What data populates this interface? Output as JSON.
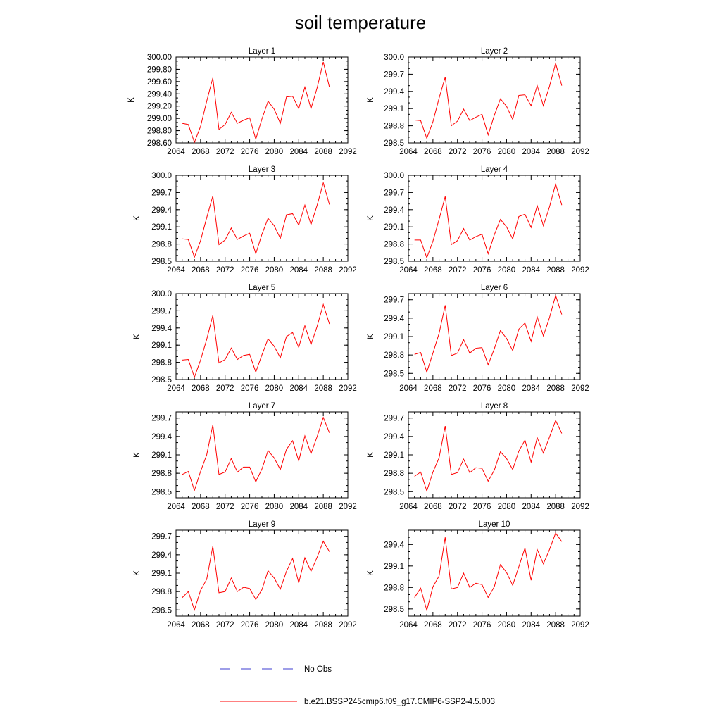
{
  "title": "soil temperature",
  "colors": {
    "model_line": "#ff0000",
    "obs_line": "#3c3cd2",
    "axis": "#000000"
  },
  "legend": [
    {
      "label": "No Obs",
      "style": "dashed",
      "color": "#3c3cd2"
    },
    {
      "label": "b.e21.BSSP245cmip6.f09_g17.CMIP6-SSP2-4.5.003",
      "style": "solid",
      "color": "#ff0000"
    }
  ],
  "chart_data": [
    {
      "type": "line",
      "title": "Layer 1",
      "xlabel": "",
      "ylabel": "K",
      "xlim": [
        2064,
        2092
      ],
      "ylim": [
        298.6,
        300.0
      ],
      "xticks": [
        2064,
        2068,
        2072,
        2076,
        2080,
        2084,
        2088,
        2092
      ],
      "yticks": [
        298.6,
        298.8,
        299.0,
        299.2,
        299.4,
        299.6,
        299.8,
        300.0
      ],
      "ytick_labels": [
        "298.60",
        "298.80",
        "299.00",
        "299.20",
        "299.40",
        "299.60",
        "299.80",
        "300.00"
      ],
      "x": [
        2065,
        2066,
        2067,
        2068,
        2069,
        2070,
        2071,
        2072,
        2073,
        2074,
        2075,
        2076,
        2077,
        2078,
        2079,
        2080,
        2081,
        2082,
        2083,
        2084,
        2085,
        2086,
        2087,
        2088,
        2089
      ],
      "series": [
        {
          "name": "b.e21.BSSP245cmip6.f09_g17.CMIP6-SSP2-4.5.003",
          "values": [
            298.92,
            298.9,
            298.61,
            298.87,
            299.28,
            299.66,
            298.82,
            298.9,
            299.1,
            298.92,
            298.97,
            299.01,
            298.66,
            298.99,
            299.28,
            299.15,
            298.92,
            299.35,
            299.36,
            299.16,
            299.51,
            299.16,
            299.5,
            299.92,
            299.51
          ]
        }
      ]
    },
    {
      "type": "line",
      "title": "Layer 2",
      "xlabel": "",
      "ylabel": "K",
      "xlim": [
        2064,
        2092
      ],
      "ylim": [
        298.5,
        300.0
      ],
      "xticks": [
        2064,
        2068,
        2072,
        2076,
        2080,
        2084,
        2088,
        2092
      ],
      "yticks": [
        298.5,
        298.8,
        299.1,
        299.4,
        299.7,
        300.0
      ],
      "ytick_labels": [
        "298.5",
        "298.8",
        "299.1",
        "299.4",
        "299.7",
        "300.0"
      ],
      "x": [
        2065,
        2066,
        2067,
        2068,
        2069,
        2070,
        2071,
        2072,
        2073,
        2074,
        2075,
        2076,
        2077,
        2078,
        2079,
        2080,
        2081,
        2082,
        2083,
        2084,
        2085,
        2086,
        2087,
        2088,
        2089
      ],
      "series": [
        {
          "name": "b.e21.BSSP245cmip6.f09_g17.CMIP6-SSP2-4.5.003",
          "values": [
            298.9,
            298.89,
            298.58,
            298.87,
            299.28,
            299.65,
            298.8,
            298.88,
            299.09,
            298.89,
            298.95,
            299.0,
            298.64,
            298.98,
            299.27,
            299.14,
            298.91,
            299.33,
            299.34,
            299.15,
            299.5,
            299.15,
            299.49,
            299.89,
            299.5
          ]
        }
      ]
    },
    {
      "type": "line",
      "title": "Layer 3",
      "xlabel": "",
      "ylabel": "K",
      "xlim": [
        2064,
        2092
      ],
      "ylim": [
        298.5,
        300.0
      ],
      "xticks": [
        2064,
        2068,
        2072,
        2076,
        2080,
        2084,
        2088,
        2092
      ],
      "yticks": [
        298.5,
        298.8,
        299.1,
        299.4,
        299.7,
        300.0
      ],
      "ytick_labels": [
        "298.5",
        "298.8",
        "299.1",
        "299.4",
        "299.7",
        "300.0"
      ],
      "x": [
        2065,
        2066,
        2067,
        2068,
        2069,
        2070,
        2071,
        2072,
        2073,
        2074,
        2075,
        2076,
        2077,
        2078,
        2079,
        2080,
        2081,
        2082,
        2083,
        2084,
        2085,
        2086,
        2087,
        2088,
        2089
      ],
      "series": [
        {
          "name": "b.e21.BSSP245cmip6.f09_g17.CMIP6-SSP2-4.5.003",
          "values": [
            298.89,
            298.88,
            298.57,
            298.86,
            299.26,
            299.64,
            298.79,
            298.87,
            299.08,
            298.88,
            298.94,
            298.99,
            298.63,
            298.97,
            299.25,
            299.12,
            298.9,
            299.31,
            299.33,
            299.13,
            299.48,
            299.14,
            299.48,
            299.87,
            299.49
          ]
        }
      ]
    },
    {
      "type": "line",
      "title": "Layer 4",
      "xlabel": "",
      "ylabel": "K",
      "xlim": [
        2064,
        2092
      ],
      "ylim": [
        298.5,
        300.0
      ],
      "xticks": [
        2064,
        2068,
        2072,
        2076,
        2080,
        2084,
        2088,
        2092
      ],
      "yticks": [
        298.5,
        298.8,
        299.1,
        299.4,
        299.7,
        300.0
      ],
      "ytick_labels": [
        "298.5",
        "298.8",
        "299.1",
        "299.4",
        "299.7",
        "300.0"
      ],
      "x": [
        2065,
        2066,
        2067,
        2068,
        2069,
        2070,
        2071,
        2072,
        2073,
        2074,
        2075,
        2076,
        2077,
        2078,
        2079,
        2080,
        2081,
        2082,
        2083,
        2084,
        2085,
        2086,
        2087,
        2088,
        2089
      ],
      "series": [
        {
          "name": "b.e21.BSSP245cmip6.f09_g17.CMIP6-SSP2-4.5.003",
          "values": [
            298.87,
            298.87,
            298.56,
            298.85,
            299.23,
            299.63,
            298.79,
            298.86,
            299.07,
            298.87,
            298.93,
            298.97,
            298.63,
            298.96,
            299.23,
            299.1,
            298.89,
            299.28,
            299.32,
            299.09,
            299.47,
            299.12,
            299.45,
            299.85,
            299.48
          ]
        }
      ]
    },
    {
      "type": "line",
      "title": "Layer 5",
      "xlabel": "",
      "ylabel": "K",
      "xlim": [
        2064,
        2092
      ],
      "ylim": [
        298.5,
        300.0
      ],
      "xticks": [
        2064,
        2068,
        2072,
        2076,
        2080,
        2084,
        2088,
        2092
      ],
      "yticks": [
        298.5,
        298.8,
        299.1,
        299.4,
        299.7,
        300.0
      ],
      "ytick_labels": [
        "298.5",
        "298.8",
        "299.1",
        "299.4",
        "299.7",
        "300.0"
      ],
      "x": [
        2065,
        2066,
        2067,
        2068,
        2069,
        2070,
        2071,
        2072,
        2073,
        2074,
        2075,
        2076,
        2077,
        2078,
        2079,
        2080,
        2081,
        2082,
        2083,
        2084,
        2085,
        2086,
        2087,
        2088,
        2089
      ],
      "series": [
        {
          "name": "b.e21.BSSP245cmip6.f09_g17.CMIP6-SSP2-4.5.003",
          "values": [
            298.84,
            298.85,
            298.54,
            298.84,
            299.2,
            299.62,
            298.79,
            298.85,
            299.05,
            298.85,
            298.92,
            298.94,
            298.63,
            298.93,
            299.21,
            299.08,
            298.88,
            299.25,
            299.32,
            299.06,
            299.44,
            299.11,
            299.43,
            299.81,
            299.47
          ]
        }
      ]
    },
    {
      "type": "line",
      "title": "Layer 6",
      "xlabel": "",
      "ylabel": "K",
      "xlim": [
        2064,
        2092
      ],
      "ylim": [
        298.4,
        299.8
      ],
      "xticks": [
        2064,
        2068,
        2072,
        2076,
        2080,
        2084,
        2088,
        2092
      ],
      "yticks": [
        298.5,
        298.8,
        299.1,
        299.4,
        299.7
      ],
      "ytick_labels": [
        "298.5",
        "298.8",
        "299.1",
        "299.4",
        "299.7"
      ],
      "x": [
        2065,
        2066,
        2067,
        2068,
        2069,
        2070,
        2071,
        2072,
        2073,
        2074,
        2075,
        2076,
        2077,
        2078,
        2079,
        2080,
        2081,
        2082,
        2083,
        2084,
        2085,
        2086,
        2087,
        2088,
        2089
      ],
      "series": [
        {
          "name": "b.e21.BSSP245cmip6.f09_g17.CMIP6-SSP2-4.5.003",
          "values": [
            298.81,
            298.84,
            298.52,
            298.83,
            299.15,
            299.61,
            298.79,
            298.83,
            299.05,
            298.83,
            298.91,
            298.92,
            298.64,
            298.9,
            299.2,
            299.07,
            298.87,
            299.22,
            299.32,
            299.02,
            299.42,
            299.11,
            299.41,
            299.77,
            299.46
          ]
        }
      ]
    },
    {
      "type": "line",
      "title": "Layer 7",
      "xlabel": "",
      "ylabel": "K",
      "xlim": [
        2064,
        2092
      ],
      "ylim": [
        298.4,
        299.8
      ],
      "xticks": [
        2064,
        2068,
        2072,
        2076,
        2080,
        2084,
        2088,
        2092
      ],
      "yticks": [
        298.5,
        298.8,
        299.1,
        299.4,
        299.7
      ],
      "ytick_labels": [
        "298.5",
        "298.8",
        "299.1",
        "299.4",
        "299.7"
      ],
      "x": [
        2065,
        2066,
        2067,
        2068,
        2069,
        2070,
        2071,
        2072,
        2073,
        2074,
        2075,
        2076,
        2077,
        2078,
        2079,
        2080,
        2081,
        2082,
        2083,
        2084,
        2085,
        2086,
        2087,
        2088,
        2089
      ],
      "series": [
        {
          "name": "b.e21.BSSP245cmip6.f09_g17.CMIP6-SSP2-4.5.003",
          "values": [
            298.78,
            298.83,
            298.52,
            298.83,
            299.1,
            299.59,
            298.78,
            298.82,
            299.04,
            298.82,
            298.9,
            298.9,
            298.66,
            298.87,
            299.17,
            299.05,
            298.86,
            299.19,
            299.33,
            299.0,
            299.41,
            299.12,
            299.4,
            299.71,
            299.46
          ]
        }
      ]
    },
    {
      "type": "line",
      "title": "Layer 8",
      "xlabel": "",
      "ylabel": "K",
      "xlim": [
        2064,
        2092
      ],
      "ylim": [
        298.4,
        299.8
      ],
      "xticks": [
        2064,
        2068,
        2072,
        2076,
        2080,
        2084,
        2088,
        2092
      ],
      "yticks": [
        298.5,
        298.8,
        299.1,
        299.4,
        299.7
      ],
      "ytick_labels": [
        "298.5",
        "298.8",
        "299.1",
        "299.4",
        "299.7"
      ],
      "x": [
        2065,
        2066,
        2067,
        2068,
        2069,
        2070,
        2071,
        2072,
        2073,
        2074,
        2075,
        2076,
        2077,
        2078,
        2079,
        2080,
        2081,
        2082,
        2083,
        2084,
        2085,
        2086,
        2087,
        2088,
        2089
      ],
      "series": [
        {
          "name": "b.e21.BSSP245cmip6.f09_g17.CMIP6-SSP2-4.5.003",
          "values": [
            298.75,
            298.82,
            298.51,
            298.82,
            299.05,
            299.57,
            298.78,
            298.81,
            299.03,
            298.81,
            298.89,
            298.88,
            298.67,
            298.85,
            299.15,
            299.04,
            298.86,
            299.16,
            299.34,
            298.98,
            299.38,
            299.13,
            299.39,
            299.66,
            299.45
          ]
        }
      ]
    },
    {
      "type": "line",
      "title": "Layer 9",
      "xlabel": "",
      "ylabel": "K",
      "xlim": [
        2064,
        2092
      ],
      "ylim": [
        298.4,
        299.8
      ],
      "xticks": [
        2064,
        2068,
        2072,
        2076,
        2080,
        2084,
        2088,
        2092
      ],
      "yticks": [
        298.5,
        298.8,
        299.1,
        299.4,
        299.7
      ],
      "ytick_labels": [
        "298.5",
        "298.8",
        "299.1",
        "299.4",
        "299.7"
      ],
      "x": [
        2065,
        2066,
        2067,
        2068,
        2069,
        2070,
        2071,
        2072,
        2073,
        2074,
        2075,
        2076,
        2077,
        2078,
        2079,
        2080,
        2081,
        2082,
        2083,
        2084,
        2085,
        2086,
        2087,
        2088,
        2089
      ],
      "series": [
        {
          "name": "b.e21.BSSP245cmip6.f09_g17.CMIP6-SSP2-4.5.003",
          "values": [
            298.7,
            298.8,
            298.5,
            298.82,
            299.0,
            299.54,
            298.78,
            298.8,
            299.02,
            298.8,
            298.87,
            298.85,
            298.67,
            298.83,
            299.14,
            299.02,
            298.84,
            299.13,
            299.34,
            298.94,
            299.35,
            299.13,
            299.36,
            299.62,
            299.45
          ]
        }
      ]
    },
    {
      "type": "line",
      "title": "Layer 10",
      "xlabel": "",
      "ylabel": "K",
      "xlim": [
        2064,
        2092
      ],
      "ylim": [
        298.4,
        299.6
      ],
      "xticks": [
        2064,
        2068,
        2072,
        2076,
        2080,
        2084,
        2088,
        2092
      ],
      "yticks": [
        298.5,
        298.8,
        299.1,
        299.4
      ],
      "ytick_labels": [
        "298.5",
        "298.8",
        "299.1",
        "299.4"
      ],
      "x": [
        2065,
        2066,
        2067,
        2068,
        2069,
        2070,
        2071,
        2072,
        2073,
        2074,
        2075,
        2076,
        2077,
        2078,
        2079,
        2080,
        2081,
        2082,
        2083,
        2084,
        2085,
        2086,
        2087,
        2088,
        2089
      ],
      "series": [
        {
          "name": "b.e21.BSSP245cmip6.f09_g17.CMIP6-SSP2-4.5.003",
          "values": [
            298.66,
            298.79,
            298.48,
            298.81,
            298.96,
            299.5,
            298.78,
            298.8,
            299.0,
            298.8,
            298.86,
            298.84,
            298.66,
            298.81,
            299.12,
            299.01,
            298.83,
            299.09,
            299.35,
            298.9,
            299.33,
            299.13,
            299.33,
            299.56,
            299.44
          ]
        }
      ]
    }
  ]
}
